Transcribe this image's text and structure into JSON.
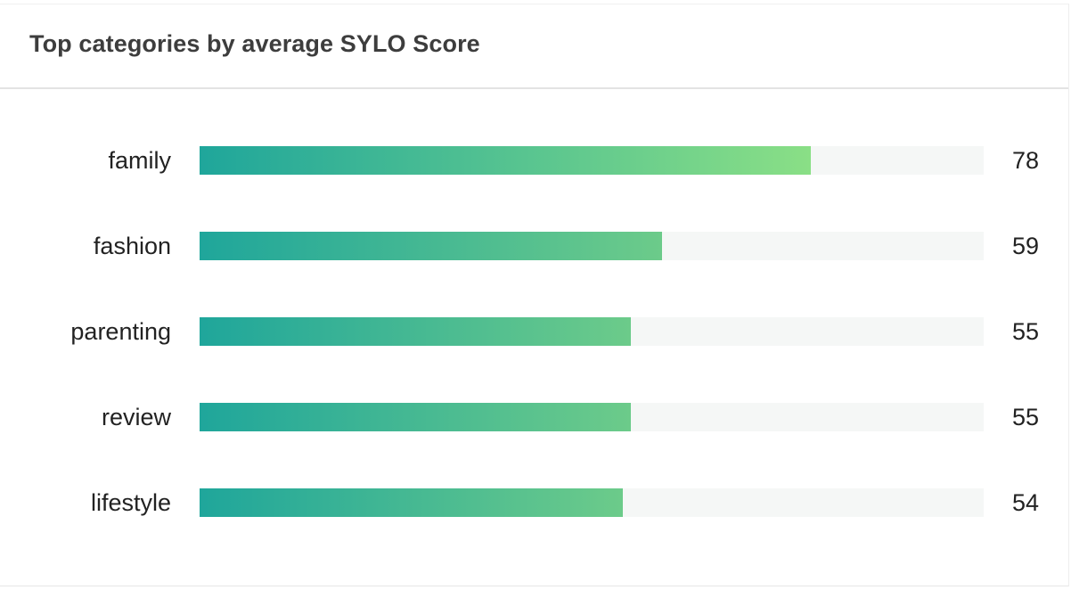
{
  "header": {
    "title": "Top categories by average SYLO Score"
  },
  "colors": {
    "bar_start": "#1fa69b",
    "bar_end": "#8adf86",
    "track": "#f5f7f6",
    "text": "#222222",
    "title": "#3d3d3d"
  },
  "chart_data": {
    "type": "bar",
    "orientation": "horizontal",
    "categories": [
      "family",
      "fashion",
      "parenting",
      "review",
      "lifestyle"
    ],
    "values": [
      78,
      59,
      55,
      55,
      54
    ],
    "xlim": [
      0,
      100
    ],
    "title": "Top categories by average SYLO Score",
    "xlabel": "",
    "ylabel": "",
    "grid": false,
    "legend": "none"
  }
}
